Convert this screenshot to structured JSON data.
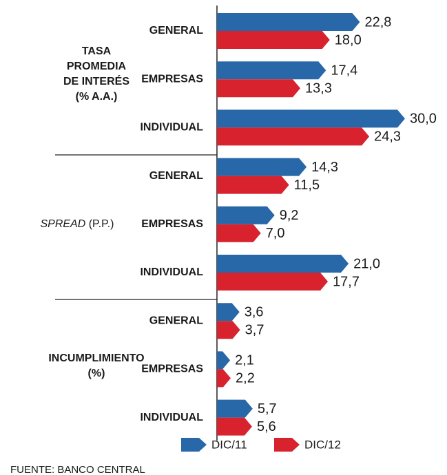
{
  "chart_data": {
    "type": "bar",
    "orientation": "horizontal",
    "groups": [
      {
        "lines": [
          [
            {
              "text": "TASA",
              "italic": false
            }
          ],
          [
            {
              "text": "PROMEDIA",
              "italic": false
            }
          ],
          [
            {
              "text": "DE INTERÉS",
              "italic": false
            }
          ],
          [
            {
              "text": "(% A.A.)",
              "italic": false
            }
          ]
        ]
      },
      {
        "lines": [
          [
            {
              "text": "SPREAD",
              "italic": true
            },
            {
              "text": " (P.P.)",
              "italic": false
            }
          ]
        ]
      },
      {
        "lines": [
          [
            {
              "text": "INCUMPLIMIENTO",
              "italic": false
            }
          ],
          [
            {
              "text": "(%)",
              "italic": false
            }
          ]
        ]
      }
    ],
    "categories": [
      "GENERAL",
      "EMPRESAS",
      "INDIVIDUAL",
      "GENERAL",
      "EMPRESAS",
      "INDIVIDUAL",
      "GENERAL",
      "EMPRESAS",
      "INDIVIDUAL"
    ],
    "series": [
      {
        "name": "DIC/11",
        "color": "#2867a8",
        "values": [
          22.8,
          17.4,
          30.0,
          14.3,
          9.2,
          21.0,
          3.6,
          2.1,
          5.7
        ],
        "value_labels": [
          "22,8",
          "17,4",
          "30,0",
          "14,3",
          "9,2",
          "21,0",
          "3,6",
          "2,1",
          "5,7"
        ]
      },
      {
        "name": "DIC/12",
        "color": "#d8232e",
        "values": [
          18.0,
          13.3,
          24.3,
          11.5,
          7.0,
          17.7,
          3.7,
          2.2,
          5.6
        ],
        "value_labels": [
          "18,0",
          "13,3",
          "24,3",
          "11,5",
          "7,0",
          "17,7",
          "3,7",
          "2,2",
          "5,6"
        ]
      }
    ],
    "source": "FUENTE: BANCO CENTRAL"
  }
}
